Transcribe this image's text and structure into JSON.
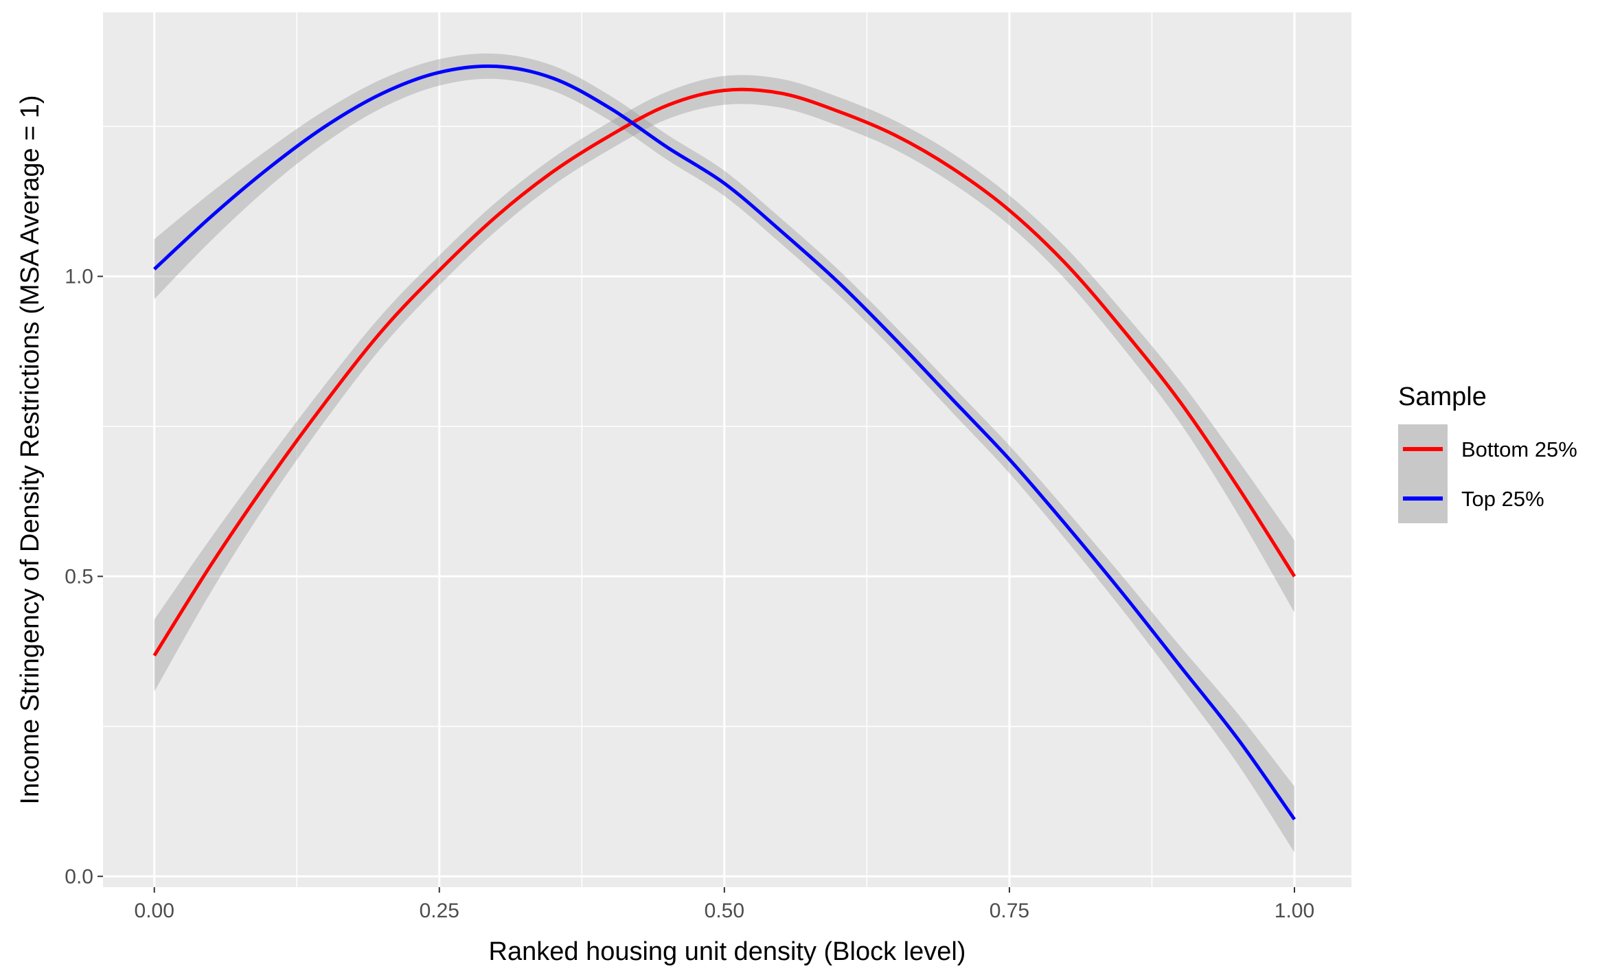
{
  "chart_data": {
    "type": "line",
    "xlabel": "Ranked housing unit density (Block level)",
    "ylabel": "Income Stringency of Density Restrictions (MSA Average = 1)",
    "xlim": [
      -0.045,
      1.05
    ],
    "ylim": [
      -0.018,
      1.44
    ],
    "x_ticks": [
      0,
      0.25,
      0.5,
      0.75,
      1
    ],
    "x_tick_labels": [
      "0.00",
      "0.25",
      "0.50",
      "0.75",
      "1.00"
    ],
    "y_ticks": [
      0,
      0.5,
      1
    ],
    "y_tick_labels": [
      "0.0",
      "0.5",
      "1.0"
    ],
    "grid": true,
    "legend": {
      "title": "Sample",
      "position": "right"
    },
    "series": [
      {
        "name": "Bottom 25%",
        "color": "#ff0000",
        "x": [
          0,
          0.05,
          0.1,
          0.15,
          0.2,
          0.25,
          0.3,
          0.35,
          0.4,
          0.45,
          0.5,
          0.55,
          0.6,
          0.65,
          0.7,
          0.75,
          0.8,
          0.85,
          0.9,
          0.95,
          1.0
        ],
        "y": [
          0.368,
          0.52,
          0.66,
          0.79,
          0.91,
          1.01,
          1.1,
          1.175,
          1.235,
          1.285,
          1.31,
          1.305,
          1.275,
          1.235,
          1.18,
          1.11,
          1.02,
          0.91,
          0.79,
          0.65,
          0.5
        ],
        "band": [
          0.06,
          0.045,
          0.035,
          0.03,
          0.027,
          0.025,
          0.024,
          0.023,
          0.023,
          0.023,
          0.024,
          0.024,
          0.024,
          0.024,
          0.025,
          0.025,
          0.027,
          0.03,
          0.035,
          0.045,
          0.06
        ]
      },
      {
        "name": "Top 25%",
        "color": "#0000ff",
        "x": [
          0,
          0.05,
          0.1,
          0.15,
          0.2,
          0.25,
          0.3,
          0.35,
          0.4,
          0.45,
          0.5,
          0.55,
          0.6,
          0.65,
          0.7,
          0.75,
          0.8,
          0.85,
          0.9,
          0.95,
          1.0
        ],
        "y": [
          1.012,
          1.1,
          1.18,
          1.25,
          1.305,
          1.34,
          1.35,
          1.33,
          1.28,
          1.215,
          1.155,
          1.075,
          0.99,
          0.895,
          0.795,
          0.695,
          0.585,
          0.47,
          0.35,
          0.23,
          0.095
        ],
        "band": [
          0.05,
          0.04,
          0.032,
          0.027,
          0.024,
          0.022,
          0.021,
          0.021,
          0.021,
          0.021,
          0.021,
          0.021,
          0.021,
          0.021,
          0.022,
          0.023,
          0.025,
          0.028,
          0.033,
          0.042,
          0.055
        ]
      }
    ]
  }
}
